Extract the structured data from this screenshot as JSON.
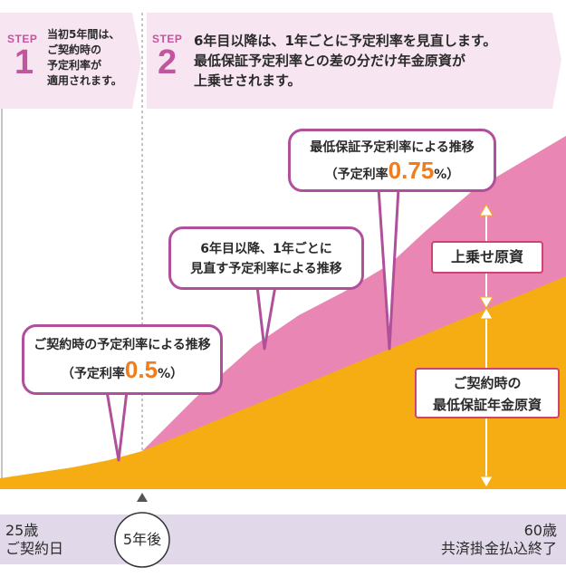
{
  "step1": {
    "word": "STEP",
    "number": "1",
    "lines": [
      "当初5年間は、",
      "ご契約時の",
      "予定利率が",
      "適用されます。"
    ]
  },
  "step2": {
    "word": "STEP",
    "number": "2",
    "lines": [
      "6年目以降は、1年ごとに予定利率を見直します。",
      "最低保証予定利率との差の分だけ年金原資が",
      "上乗せされます。"
    ]
  },
  "callouts": {
    "contract": {
      "title": "ご契約時の予定利率による推移",
      "rate_prefix": "（予定利率",
      "rate_value": "0.5",
      "rate_suffix": "%）"
    },
    "review": {
      "line1": "6年目以降、1年ごとに",
      "line2": "見直す予定利率による推移"
    },
    "minimum": {
      "title": "最低保証予定利率による推移",
      "rate_prefix": "（予定利率",
      "rate_value": "0.75",
      "rate_suffix": "%）"
    }
  },
  "labels": {
    "bonus": "上乗せ原資",
    "guaranteed_line1": "ご契約時の",
    "guaranteed_line2": "最低保証年金原資"
  },
  "timeline": {
    "start_age": "25歳",
    "start_label": "ご契約日",
    "milestone": "5年後",
    "end_age": "60歳",
    "end_label": "共済掛金払込終了"
  },
  "colors": {
    "step_band": "#f7e6f1",
    "pink_area": "#ea86b4",
    "orange_area": "#f6ad13",
    "timeline_bar": "#e1d9ea",
    "callout_border": "#b0509a",
    "tag_border": "#d2426e",
    "rate_text": "#f07c1c"
  }
}
